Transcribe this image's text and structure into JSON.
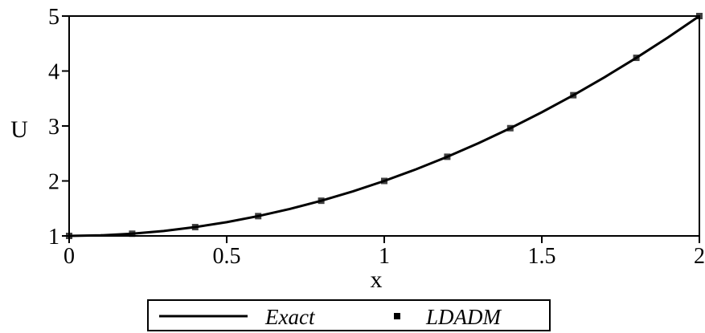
{
  "chart_data": {
    "type": "line",
    "title": "",
    "xlabel": "x",
    "ylabel": "U",
    "xlim": [
      0,
      2
    ],
    "ylim": [
      1,
      5
    ],
    "x_ticks": [
      "0",
      "0.5",
      "1",
      "1.5",
      "2"
    ],
    "y_ticks": [
      "1",
      "2",
      "3",
      "4",
      "5"
    ],
    "grid": false,
    "legend_position": "bottom",
    "series": [
      {
        "name": "Exact",
        "style": "line",
        "color": "#000000",
        "x": [
          0,
          0.1,
          0.2,
          0.3,
          0.4,
          0.5,
          0.6,
          0.7,
          0.8,
          0.9,
          1.0,
          1.1,
          1.2,
          1.3,
          1.4,
          1.5,
          1.6,
          1.7,
          1.8,
          1.9,
          2.0
        ],
        "y": [
          1.0,
          1.01,
          1.04,
          1.09,
          1.16,
          1.25,
          1.36,
          1.49,
          1.64,
          1.81,
          2.0,
          2.21,
          2.44,
          2.69,
          2.96,
          3.25,
          3.56,
          3.89,
          4.24,
          4.61,
          5.0
        ]
      },
      {
        "name": "LDADM",
        "style": "markers",
        "color": "#000000",
        "x": [
          0,
          0.2,
          0.4,
          0.6,
          0.8,
          1.0,
          1.2,
          1.4,
          1.6,
          1.8,
          2.0
        ],
        "y": [
          1.0,
          1.04,
          1.16,
          1.36,
          1.64,
          2.0,
          2.44,
          2.96,
          3.56,
          4.24,
          5.0
        ]
      }
    ]
  }
}
